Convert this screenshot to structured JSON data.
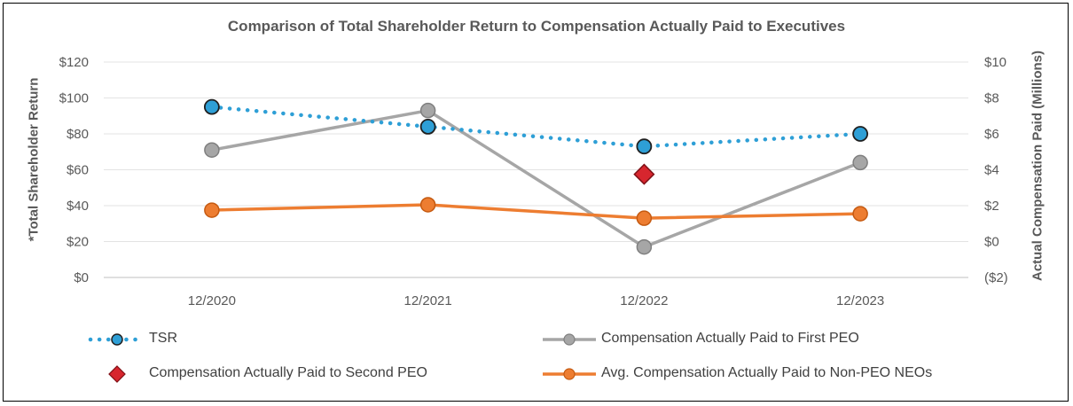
{
  "chart_data": {
    "type": "line",
    "title": "Comparison of Total Shareholder Return to Compensation Actually Paid to Executives",
    "categories": [
      "12/2020",
      "12/2021",
      "12/2022",
      "12/2023"
    ],
    "y_left": {
      "label": "*Total Shareholder Return",
      "range": [
        0,
        120
      ],
      "ticks": [
        0,
        20,
        40,
        60,
        80,
        100,
        120
      ],
      "tick_labels": [
        "$0",
        "$20",
        "$40",
        "$60",
        "$80",
        "$100",
        "$120"
      ]
    },
    "y_right": {
      "label": "Actual Compensation Paid (Millions)",
      "range": [
        -2,
        10
      ],
      "ticks": [
        -2,
        0,
        2,
        4,
        6,
        8,
        10
      ],
      "tick_labels": [
        "($2)",
        "$0",
        "$2",
        "$4",
        "$6",
        "$8",
        "$10"
      ]
    },
    "series": [
      {
        "name": "TSR",
        "axis": "left",
        "style": "dotted",
        "color": "#2e9fd6",
        "values": [
          95,
          84,
          73,
          80
        ]
      },
      {
        "name": "Compensation Actually Paid to First PEO",
        "axis": "right",
        "style": "line",
        "color": "#a6a6a6",
        "values": [
          5.1,
          7.3,
          -0.3,
          4.4
        ]
      },
      {
        "name": "Compensation Actually Paid to Second PEO",
        "axis": "right",
        "style": "diamond",
        "color": "#d7262e",
        "values": [
          null,
          null,
          3.75,
          null
        ]
      },
      {
        "name": "Avg. Compensation Actually Paid to Non-PEO NEOs",
        "axis": "right",
        "style": "line",
        "color": "#ed7d31",
        "values": [
          1.75,
          2.05,
          1.3,
          1.55
        ]
      }
    ],
    "grid": true,
    "legend_position": "bottom"
  },
  "legend": {
    "tsr": "TSR",
    "first_peo": "Compensation Actually Paid to First PEO",
    "second_peo": "Compensation Actually Paid to Second PEO",
    "non_peo": "Avg. Compensation Actually Paid to Non-PEO NEOs"
  }
}
